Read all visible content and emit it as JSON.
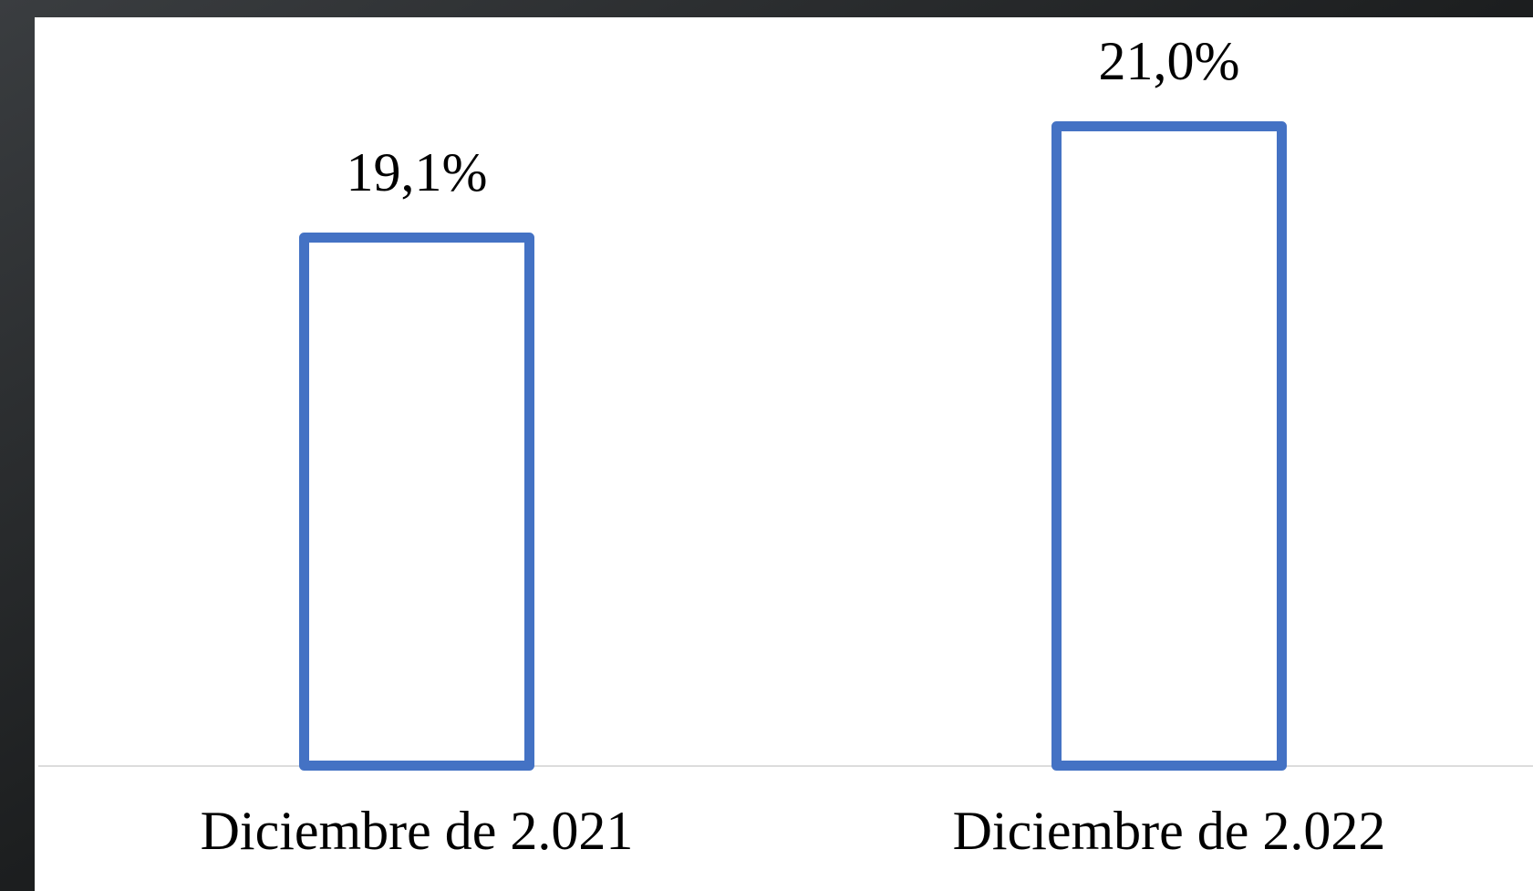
{
  "chart_data": {
    "type": "bar",
    "categories": [
      "Diciembre de 2.021",
      "Diciembre de 2.022"
    ],
    "values": [
      19.1,
      21.0
    ],
    "value_labels": [
      "19,1%",
      "21,0%"
    ],
    "color": "#4472c4",
    "ylim": [
      10,
      22
    ]
  }
}
